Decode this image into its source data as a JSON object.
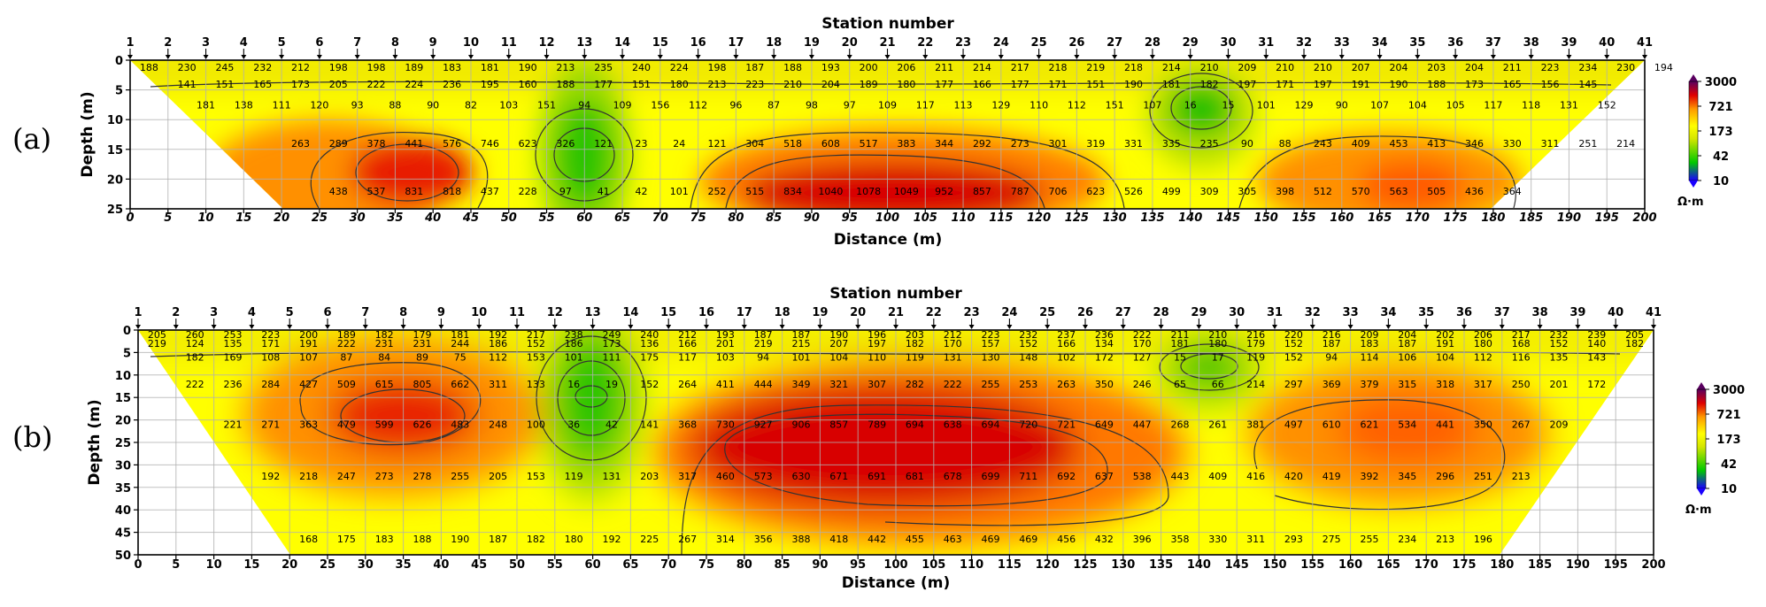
{
  "colorbar": {
    "ticks": [
      "3000",
      "721",
      "173",
      "42",
      "10"
    ],
    "unit": "Ω·m",
    "colors": [
      "#1a00ff",
      "#00c800",
      "#d4e600",
      "#ffff00",
      "#ff9a00",
      "#e00000",
      "#5a0060"
    ]
  },
  "chart_data": [
    {
      "type": "heatmap",
      "panel_label": "(a)",
      "title": "Station number",
      "xlabel": "Distance (m)",
      "ylabel": "Depth (m)",
      "xlim": [
        0,
        200
      ],
      "ylim": [
        0,
        25
      ],
      "x_ticks": [
        "0",
        "5",
        "10",
        "15",
        "20",
        "25",
        "30",
        "35",
        "40",
        "45",
        "50",
        "55",
        "60",
        "65",
        "70",
        "75",
        "80",
        "85",
        "90",
        "95",
        "100",
        "105",
        "110",
        "115",
        "120",
        "125",
        "130",
        "135",
        "140",
        "145",
        "150",
        "155",
        "160",
        "165",
        "170",
        "175",
        "180",
        "185",
        "190",
        "195",
        "200"
      ],
      "y_ticks": [
        "0",
        "5",
        "10",
        "15",
        "20",
        "25"
      ],
      "stations": [
        "1",
        "2",
        "3",
        "4",
        "5",
        "6",
        "7",
        "8",
        "9",
        "10",
        "11",
        "12",
        "13",
        "14",
        "15",
        "16",
        "17",
        "18",
        "19",
        "20",
        "21",
        "22",
        "23",
        "24",
        "25",
        "26",
        "27",
        "28",
        "29",
        "30",
        "31",
        "32",
        "33",
        "34",
        "35",
        "36",
        "37",
        "38",
        "39",
        "40",
        "41"
      ],
      "rows": [
        {
          "depth": 1.2,
          "x0": 2.5,
          "dx": 5,
          "values": [
            "188",
            "230",
            "245",
            "232",
            "212",
            "198",
            "198",
            "189",
            "183",
            "181",
            "190",
            "213",
            "235",
            "240",
            "224",
            "198",
            "187",
            "188",
            "193",
            "200",
            "206",
            "211",
            "214",
            "217",
            "218",
            "219",
            "218",
            "214",
            "210",
            "209",
            "210",
            "210",
            "207",
            "204",
            "203",
            "204",
            "211",
            "223",
            "234",
            "230",
            "194"
          ]
        },
        {
          "depth": 4.0,
          "x0": 7.5,
          "dx": 5,
          "values": [
            "141",
            "151",
            "165",
            "173",
            "205",
            "222",
            "224",
            "236",
            "195",
            "160",
            "188",
            "177",
            "151",
            "180",
            "213",
            "223",
            "210",
            "204",
            "189",
            "180",
            "177",
            "166",
            "177",
            "171",
            "151",
            "190",
            "181",
            "182",
            "197",
            "171",
            "197",
            "191",
            "190",
            "188",
            "173",
            "165",
            "156",
            "145"
          ]
        },
        {
          "depth": 7.5,
          "x0": 10,
          "dx": 5,
          "values": [
            "181",
            "138",
            "111",
            "120",
            "93",
            "88",
            "90",
            "82",
            "103",
            "151",
            "94",
            "109",
            "156",
            "112",
            "96",
            "87",
            "98",
            "97",
            "109",
            "117",
            "113",
            "129",
            "110",
            "112",
            "151",
            "107",
            "16",
            "15",
            "101",
            "129",
            "90",
            "107",
            "104",
            "105",
            "117",
            "118",
            "131",
            "152"
          ]
        },
        {
          "depth": 14.0,
          "x0": 22.5,
          "dx": 5,
          "values": [
            "263",
            "289",
            "378",
            "441",
            "576",
            "746",
            "623",
            "326",
            "121",
            "23",
            "24",
            "121",
            "304",
            "518",
            "608",
            "517",
            "383",
            "344",
            "292",
            "273",
            "301",
            "319",
            "331",
            "335",
            "235",
            "90",
            "88",
            "243",
            "409",
            "453",
            "413",
            "346",
            "330",
            "311",
            "251",
            "214"
          ]
        },
        {
          "depth": 22.0,
          "x0": 27.5,
          "dx": 5,
          "values": [
            "438",
            "537",
            "831",
            "818",
            "437",
            "228",
            "97",
            "41",
            "42",
            "101",
            "252",
            "515",
            "834",
            "1040",
            "1078",
            "1049",
            "952",
            "857",
            "787",
            "706",
            "623",
            "526",
            "499",
            "309",
            "305",
            "398",
            "512",
            "570",
            "563",
            "505",
            "436",
            "364"
          ]
        }
      ],
      "contour_levels": [
        "10",
        "42",
        "173",
        "721",
        "3000"
      ]
    },
    {
      "type": "heatmap",
      "panel_label": "(b)",
      "title": "Station number",
      "xlabel": "Distance (m)",
      "ylabel": "Depth (m)",
      "xlim": [
        0,
        200
      ],
      "ylim": [
        0,
        50
      ],
      "x_ticks": [
        "0",
        "5",
        "10",
        "15",
        "20",
        "25",
        "30",
        "35",
        "40",
        "45",
        "50",
        "55",
        "60",
        "65",
        "70",
        "75",
        "80",
        "85",
        "90",
        "95",
        "100",
        "105",
        "110",
        "115",
        "120",
        "125",
        "130",
        "135",
        "140",
        "145",
        "150",
        "155",
        "160",
        "165",
        "170",
        "175",
        "180",
        "185",
        "190",
        "195",
        "200"
      ],
      "y_ticks": [
        "0",
        "5",
        "10",
        "15",
        "20",
        "25",
        "30",
        "35",
        "40",
        "45",
        "50"
      ],
      "stations": [
        "1",
        "2",
        "3",
        "4",
        "5",
        "6",
        "7",
        "8",
        "9",
        "10",
        "11",
        "12",
        "13",
        "14",
        "15",
        "16",
        "17",
        "18",
        "19",
        "20",
        "21",
        "22",
        "23",
        "24",
        "25",
        "26",
        "27",
        "28",
        "29",
        "30",
        "31",
        "32",
        "33",
        "34",
        "35",
        "36",
        "37",
        "38",
        "39",
        "40",
        "41"
      ],
      "rows": [
        {
          "depth": 1.0,
          "x0": 2.5,
          "dx": 5,
          "values": [
            "205",
            "260",
            "253",
            "223",
            "200",
            "189",
            "182",
            "179",
            "181",
            "192",
            "217",
            "238",
            "249",
            "240",
            "212",
            "193",
            "187",
            "187",
            "190",
            "196",
            "203",
            "212",
            "223",
            "232",
            "237",
            "236",
            "222",
            "211",
            "210",
            "216",
            "220",
            "216",
            "209",
            "204",
            "202",
            "206",
            "217",
            "232",
            "239",
            "205"
          ]
        },
        {
          "depth": 3.0,
          "x0": 2.5,
          "dx": 5,
          "values": [
            "219",
            "124",
            "135",
            "171",
            "191",
            "222",
            "231",
            "231",
            "244",
            "186",
            "152",
            "186",
            "173",
            "136",
            "166",
            "201",
            "219",
            "215",
            "207",
            "197",
            "182",
            "170",
            "157",
            "152",
            "166",
            "134",
            "170",
            "181",
            "180",
            "179",
            "152",
            "187",
            "183",
            "187",
            "191",
            "180",
            "168",
            "152",
            "140",
            "182"
          ]
        },
        {
          "depth": 6.0,
          "x0": 7.5,
          "dx": 5,
          "values": [
            "182",
            "169",
            "108",
            "107",
            "87",
            "84",
            "89",
            "75",
            "112",
            "153",
            "101",
            "111",
            "175",
            "117",
            "103",
            "94",
            "101",
            "104",
            "110",
            "119",
            "131",
            "130",
            "148",
            "102",
            "172",
            "127",
            "15",
            "17",
            "119",
            "152",
            "94",
            "114",
            "106",
            "104",
            "112",
            "116",
            "135",
            "143"
          ]
        },
        {
          "depth": 12.0,
          "x0": 7.5,
          "dx": 5,
          "values": [
            "222",
            "236",
            "284",
            "427",
            "509",
            "615",
            "805",
            "662",
            "311",
            "133",
            "16",
            "19",
            "152",
            "264",
            "411",
            "444",
            "349",
            "321",
            "307",
            "282",
            "222",
            "255",
            "253",
            "263",
            "350",
            "246",
            "65",
            "66",
            "214",
            "297",
            "369",
            "379",
            "315",
            "318",
            "317",
            "250",
            "201",
            "172"
          ]
        },
        {
          "depth": 21.0,
          "x0": 12.5,
          "dx": 5,
          "values": [
            "221",
            "271",
            "363",
            "479",
            "599",
            "626",
            "483",
            "248",
            "100",
            "36",
            "42",
            "141",
            "368",
            "730",
            "927",
            "906",
            "857",
            "789",
            "694",
            "638",
            "694",
            "720",
            "721",
            "649",
            "447",
            "268",
            "261",
            "381",
            "497",
            "610",
            "621",
            "534",
            "441",
            "350",
            "267",
            "209"
          ]
        },
        {
          "depth": 32.5,
          "x0": 17.5,
          "dx": 5,
          "values": [
            "192",
            "218",
            "247",
            "273",
            "278",
            "255",
            "205",
            "153",
            "119",
            "131",
            "203",
            "317",
            "460",
            "573",
            "630",
            "671",
            "691",
            "681",
            "678",
            "699",
            "711",
            "692",
            "637",
            "538",
            "443",
            "409",
            "416",
            "420",
            "419",
            "392",
            "345",
            "296",
            "251",
            "213"
          ]
        },
        {
          "depth": 46.5,
          "x0": 22.5,
          "dx": 5,
          "values": [
            "168",
            "175",
            "183",
            "188",
            "190",
            "187",
            "182",
            "180",
            "192",
            "225",
            "267",
            "314",
            "356",
            "388",
            "418",
            "442",
            "455",
            "463",
            "469",
            "469",
            "456",
            "432",
            "396",
            "358",
            "330",
            "311",
            "293",
            "275",
            "255",
            "234",
            "213",
            "196"
          ]
        }
      ],
      "contour_levels": [
        "10",
        "42",
        "173",
        "721",
        "3000"
      ]
    }
  ]
}
